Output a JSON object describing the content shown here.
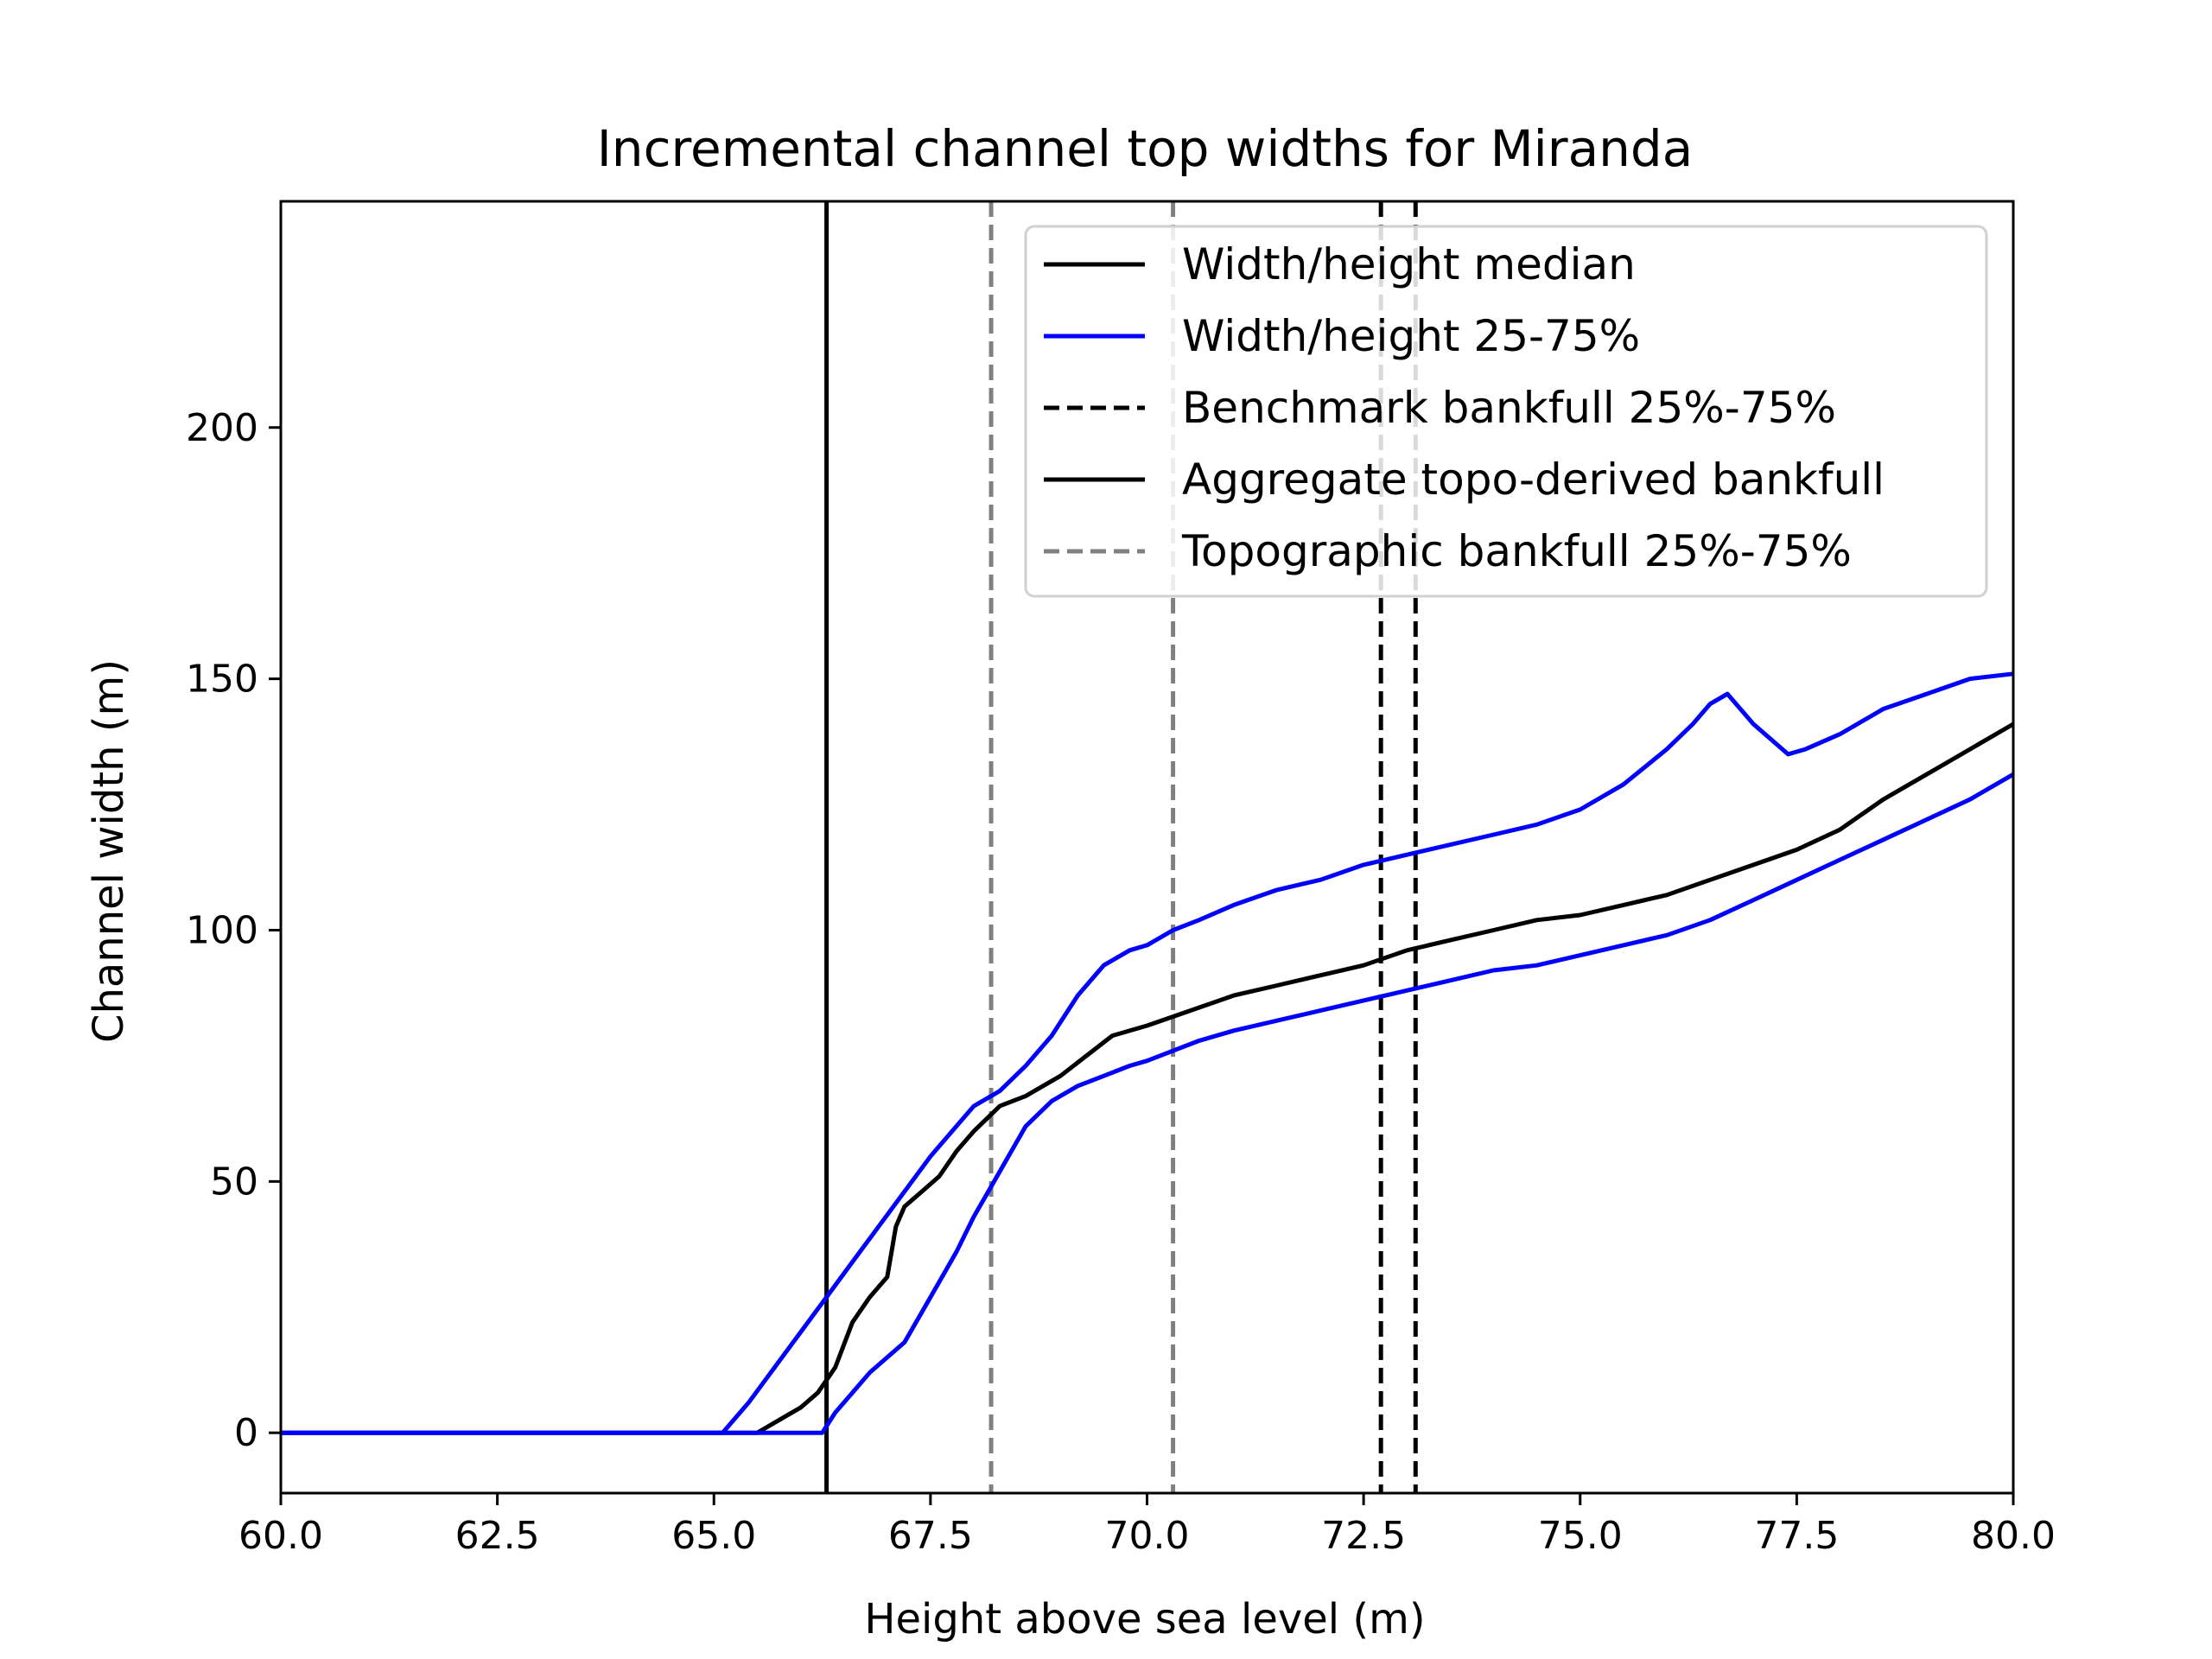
{
  "chart_data": {
    "type": "line",
    "title": "Incremental channel top widths for Miranda",
    "xlabel": "Height above sea level (m)",
    "ylabel": "Channel width (m)",
    "xlim": [
      60.0,
      80.0
    ],
    "ylim": [
      -12,
      245
    ],
    "xticks": [
      "60.0",
      "62.5",
      "65.0",
      "67.5",
      "70.0",
      "72.5",
      "75.0",
      "77.5",
      "80.0"
    ],
    "yticks": [
      "0",
      "50",
      "100",
      "150",
      "200"
    ],
    "grid": false,
    "legend_position": "top-right",
    "colors": {
      "median": "#000000",
      "quartile": "#0000ff",
      "benchmark": "#000000",
      "aggregate": "#000000",
      "topographic": "#808080"
    },
    "series": [
      {
        "name": "Width/height median",
        "style": "solid",
        "x": [
          60.0,
          65.5,
          65.8,
          66.0,
          66.2,
          66.4,
          66.6,
          66.8,
          67.0,
          67.1,
          67.2,
          67.4,
          67.6,
          67.8,
          68.0,
          68.3,
          68.6,
          69.0,
          69.3,
          69.6,
          70.0,
          70.5,
          71.0,
          71.5,
          72.0,
          72.5,
          73.0,
          73.5,
          74.0,
          74.5,
          75.0,
          75.5,
          76.0,
          76.5,
          77.0,
          77.5,
          78.0,
          78.5,
          79.0,
          79.5,
          80.0
        ],
        "y": [
          0,
          0,
          3,
          5,
          8,
          13,
          22,
          27,
          31,
          41,
          45,
          48,
          51,
          56,
          60,
          65,
          67,
          71,
          75,
          79,
          81,
          84,
          87,
          89,
          91,
          93,
          96,
          98,
          100,
          102,
          103,
          105,
          107,
          110,
          113,
          116,
          120,
          126,
          131,
          136,
          141
        ]
      },
      {
        "name": "Width/height 25-75%",
        "style": "solid",
        "x": [
          60.0,
          65.1,
          65.4,
          65.7,
          66.0,
          66.3,
          66.6,
          66.9,
          67.2,
          67.5,
          67.8,
          68.0,
          68.3,
          68.6,
          68.9,
          69.2,
          69.5,
          69.8,
          70.0,
          70.3,
          70.6,
          71.0,
          71.5,
          72.0,
          72.5,
          73.0,
          73.5,
          74.0,
          74.5,
          75.0,
          75.5,
          76.0,
          76.3,
          76.5,
          76.7,
          77.0,
          77.2,
          77.4,
          77.6,
          78.0,
          78.5,
          79.0,
          79.5,
          80.0
        ],
        "y": [
          0,
          0,
          6,
          13,
          20,
          27,
          34,
          41,
          48,
          55,
          61,
          65,
          68,
          73,
          79,
          87,
          93,
          96,
          97,
          100,
          102,
          105,
          108,
          110,
          113,
          115,
          117,
          119,
          121,
          124,
          129,
          136,
          141,
          145,
          147,
          141,
          138,
          135,
          136,
          139,
          144,
          147,
          150,
          151
        ]
      },
      {
        "name": "",
        "style": "solid",
        "x": [
          60.0,
          66.25,
          66.4,
          66.6,
          66.8,
          67.0,
          67.2,
          67.4,
          67.6,
          67.8,
          68.0,
          68.2,
          68.4,
          68.6,
          68.9,
          69.2,
          69.5,
          69.8,
          70.0,
          70.3,
          70.6,
          71.0,
          71.5,
          72.0,
          72.5,
          73.0,
          73.5,
          74.0,
          74.5,
          75.0,
          75.5,
          76.0,
          76.5,
          77.0,
          77.5,
          78.0,
          78.5,
          79.0,
          79.5,
          80.0
        ],
        "y": [
          0,
          0,
          4,
          8,
          12,
          15,
          18,
          24,
          30,
          36,
          43,
          49,
          55,
          61,
          66,
          69,
          71,
          73,
          74,
          76,
          78,
          80,
          82,
          84,
          86,
          88,
          90,
          92,
          93,
          95,
          97,
          99,
          102,
          106,
          110,
          114,
          118,
          122,
          126,
          131
        ]
      }
    ],
    "vlines": [
      {
        "name": "Benchmark bankfull 25%-75%",
        "x": [
          72.7,
          73.1
        ],
        "style": "dashed"
      },
      {
        "name": "Aggregate topo-derived bankfull",
        "x": [
          66.3
        ],
        "style": "solid"
      },
      {
        "name": "Topographic bankfull 25%-75%",
        "x": [
          68.2,
          70.3
        ],
        "style": "dashed"
      }
    ],
    "legend": [
      {
        "label": "Width/height median",
        "style": "solid",
        "color": "#000000"
      },
      {
        "label": "Width/height 25-75%",
        "style": "solid",
        "color": "#0000ff"
      },
      {
        "label": "Benchmark bankfull 25%-75%",
        "style": "dashed",
        "color": "#000000"
      },
      {
        "label": "Aggregate topo-derived bankfull",
        "style": "solid",
        "color": "#000000"
      },
      {
        "label": "Topographic bankfull 25%-75%",
        "style": "dashed",
        "color": "#808080"
      }
    ]
  }
}
